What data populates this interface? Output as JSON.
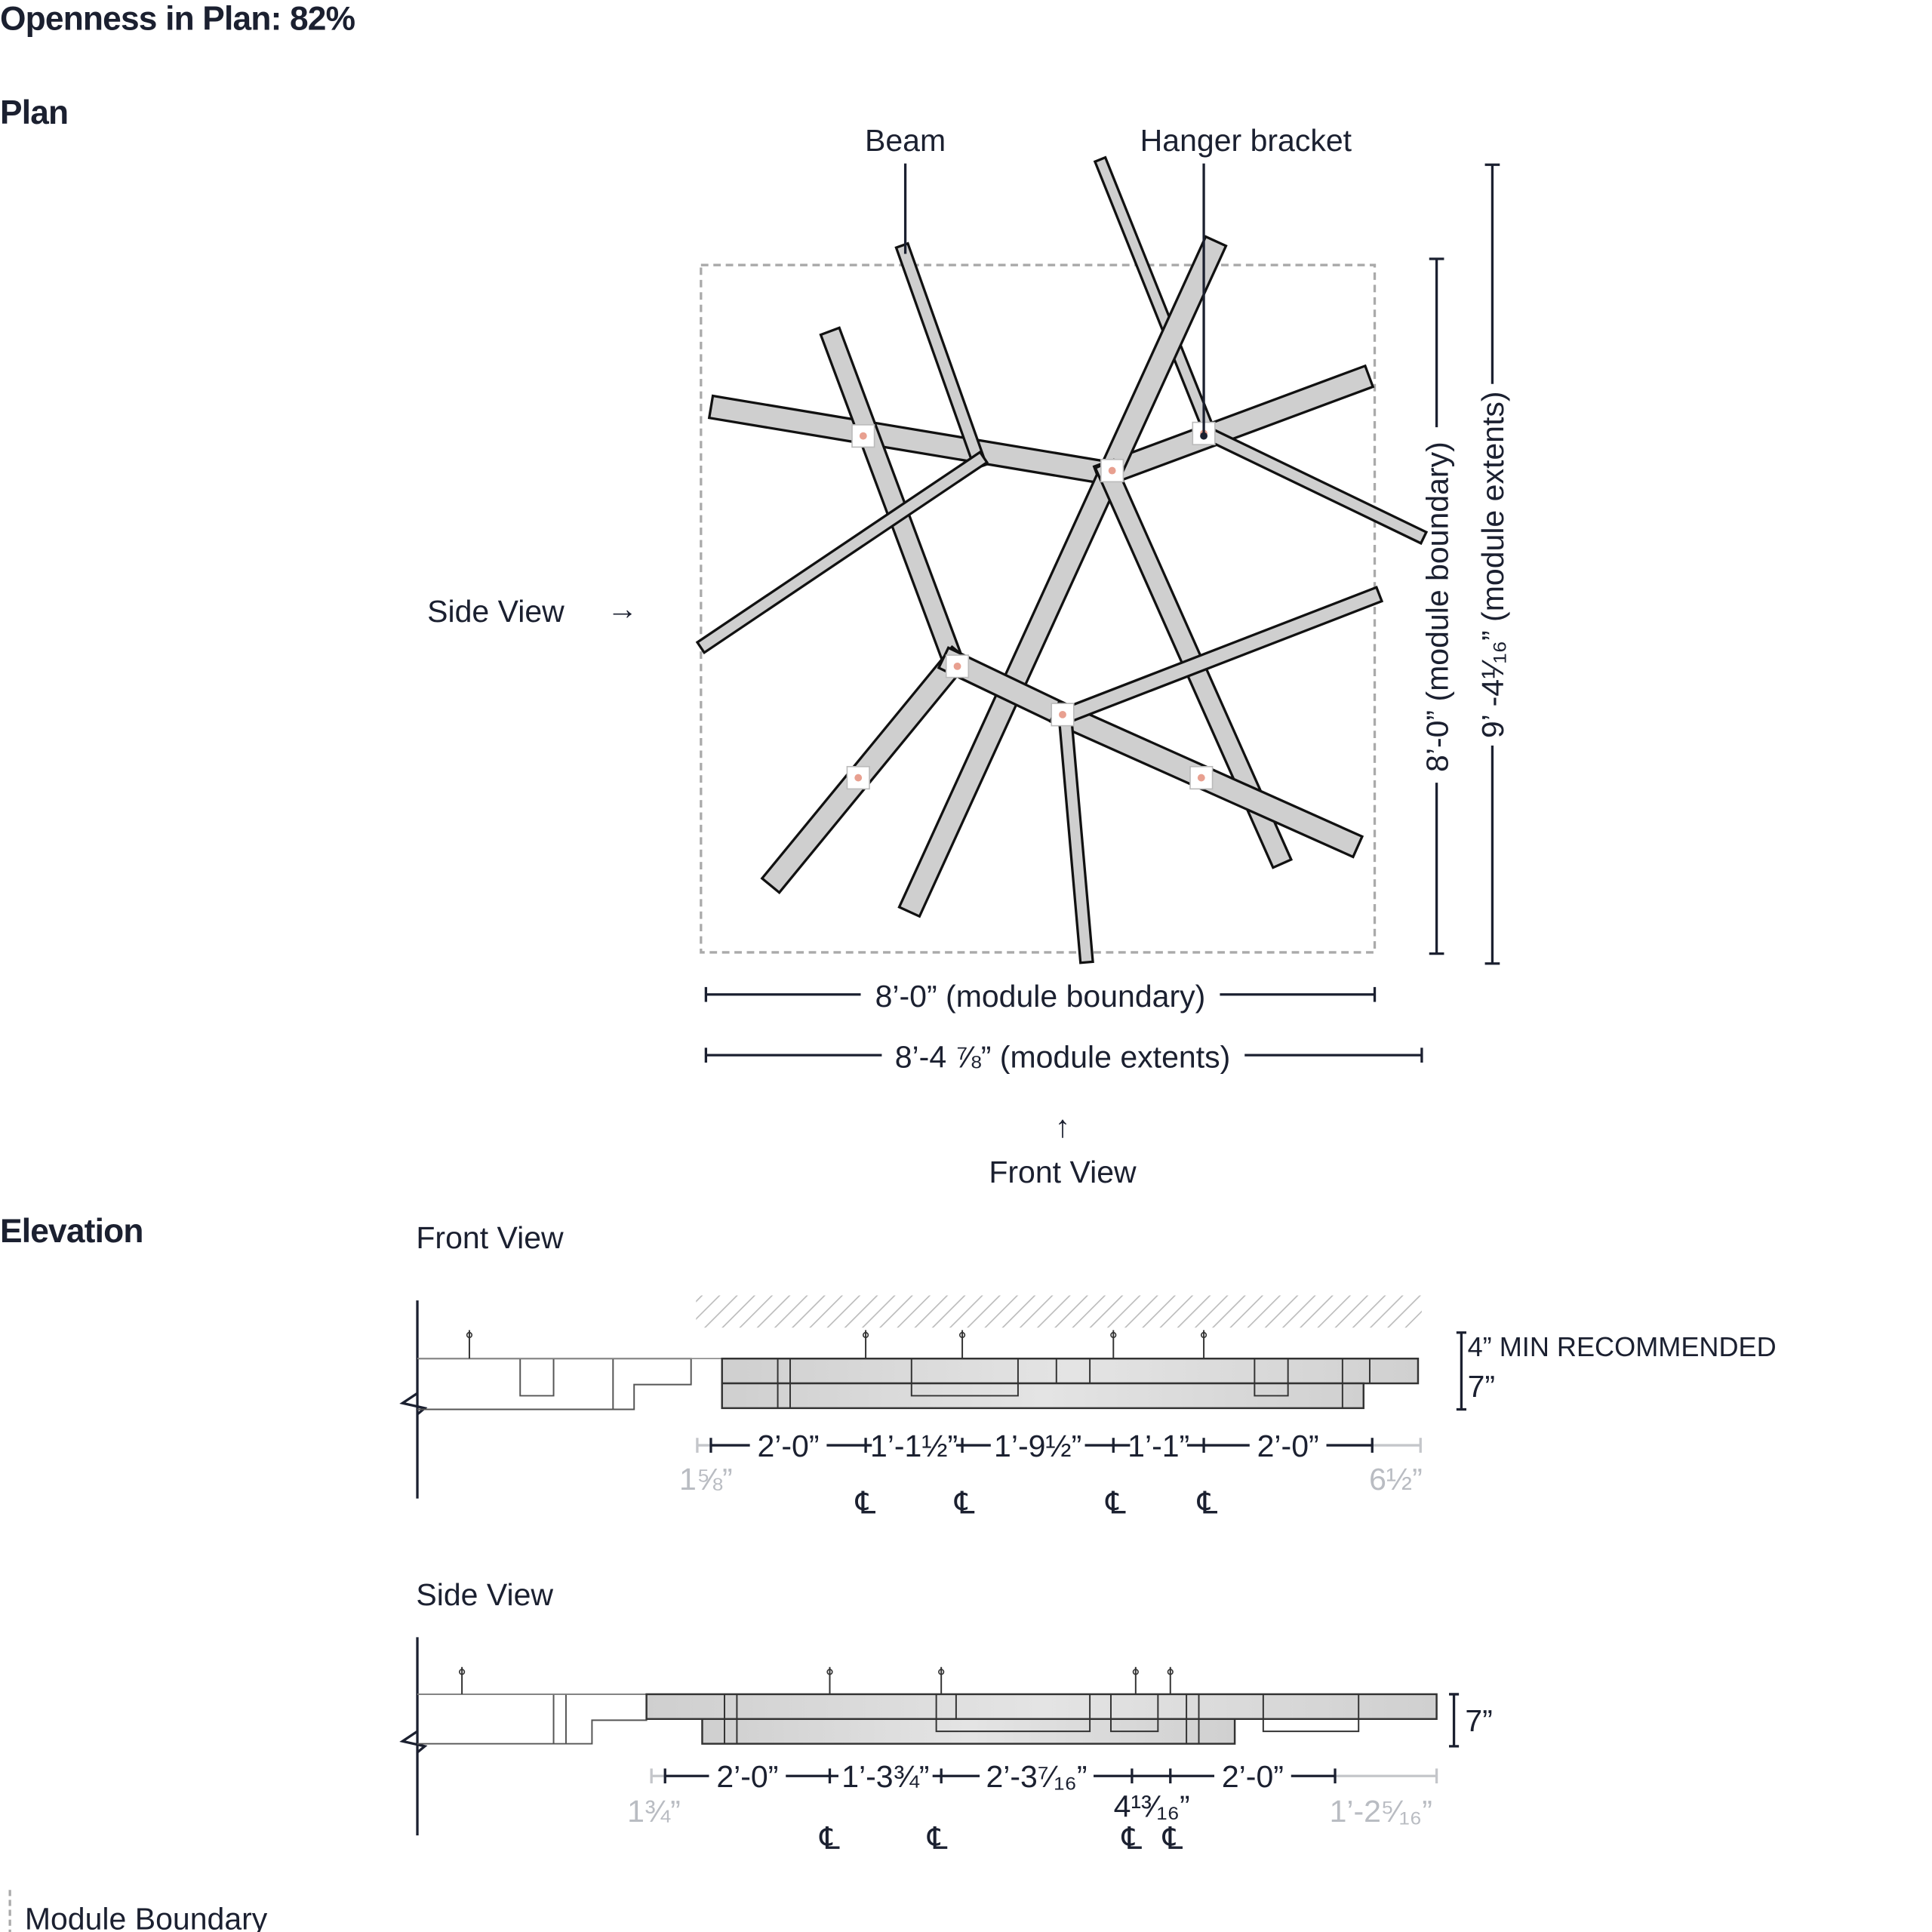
{
  "header": {
    "openness": "Openness in Plan: 82%"
  },
  "sections": {
    "plan": "Plan",
    "elevation": "Elevation"
  },
  "plan": {
    "callout_beam": "Beam",
    "callout_hanger": "Hanger bracket",
    "side_view": "Side View",
    "side_arrow": "→",
    "front_view": "Front View",
    "front_arrow": "↑",
    "dim_width_boundary": "8’-0” (module boundary)",
    "dim_width_extents": "8’-4 ⅞” (module extents)",
    "dim_height_boundary": "8’-0” (module boundary)",
    "dim_height_extents": "9’ -4¹⁄₁₆” (module extents)"
  },
  "front_elevation": {
    "title": "Front View",
    "min_recommended": "4” MIN RECOMMENDED",
    "depth": "7”",
    "dims": [
      "2’-0”",
      "1’-1½”",
      "1’-9½”",
      "1’-1”",
      "2’-0”"
    ],
    "offset_left": "1⅝”",
    "offset_right": "6½”",
    "centerline": "℄"
  },
  "side_elevation": {
    "title": "Side View",
    "depth": "7”",
    "dims": [
      "2’-0”",
      "1’-3¾”",
      "2’-3⁷⁄₁₆”",
      "2’-0”"
    ],
    "small_dim": "4¹³⁄₁₆”",
    "offset_left": "1¾”",
    "offset_right": "1’-2⁵⁄₁₆”",
    "centerline": "℄"
  },
  "legend": {
    "module_boundary": "Module Boundary"
  },
  "colors": {
    "ink": "#1b2030",
    "beam": "#cfcfcf",
    "node_dot": "#e8a090",
    "faded": "#b9bcc2"
  }
}
